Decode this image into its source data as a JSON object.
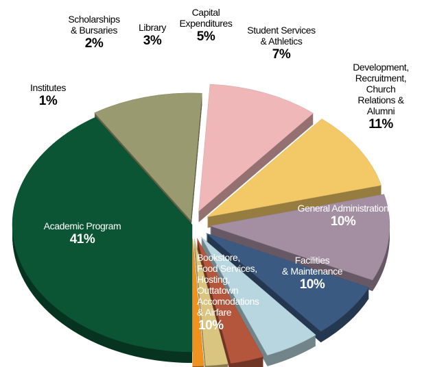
{
  "chart_data": {
    "type": "pie",
    "categories": [
      "Academic Program",
      "Bookstore,\nFood Services,\nHosting,\nOuttatown\nAccomodations\n& Airfare",
      "Facilities\n& Maintenance",
      "General Administration",
      "Development, Recruitment,\nChurch Relations & Alumni",
      "Student Services\n& Athletics",
      "Capital\nExpenditures",
      "Library",
      "Scholarships\n& Bursaries",
      "Institutes"
    ],
    "values": [
      41,
      10,
      10,
      10,
      11,
      7,
      5,
      3,
      2,
      1
    ],
    "value_labels": [
      "41%",
      "10%",
      "10%",
      "10%",
      "11%",
      "7%",
      "5%",
      "3%",
      "2%",
      "1%"
    ],
    "colors": [
      "#0b5434",
      "#9a9a70",
      "#efb7b7",
      "#f3c867",
      "#a48ea1",
      "#3b5a81",
      "#b8d6df",
      "#b4563c",
      "#d9c57f",
      "#f0921f"
    ]
  }
}
